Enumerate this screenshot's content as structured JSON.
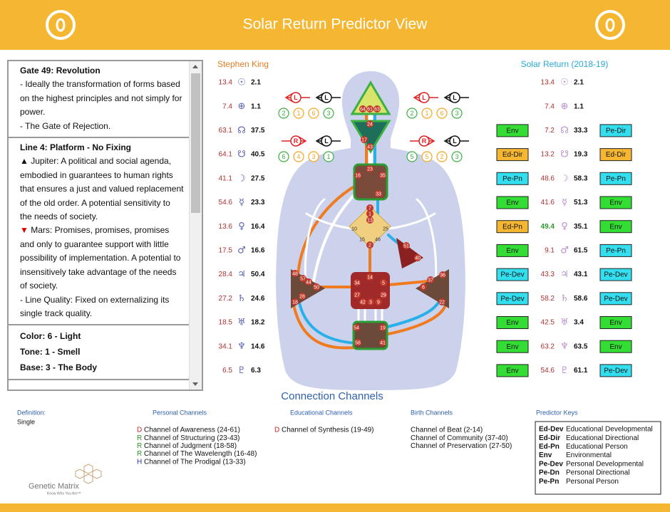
{
  "header": {
    "title": "Solar Return Predictor View"
  },
  "info_panel": {
    "gate_title": "Gate 49: Revolution",
    "gate_lines": [
      "- Ideally the transformation of forms based on the highest principles and not simply for power.",
      "- The Gate of Rejection."
    ],
    "line_title": "Line 4: Platform - No Fixing",
    "jupiter": {
      "marker": "▲",
      "text": "Jupiter: A political and social agenda, embodied in guarantees to human rights that ensures a just and valued replacement of the old order. A potential sensitivity to the needs of society."
    },
    "mars": {
      "marker": "▼",
      "text": "Mars: Promises, promises, promises and only to guarantee support with little possibility of implementation. A potential to insensitively take advantage of the needs of society."
    },
    "line_quality": "- Line Quality: Fixed on externalizing its single track quality.",
    "color": "Color: 6 - Light",
    "tone": "Tone: 1 - Smell",
    "base": "Base: 3 - The Body"
  },
  "persons": {
    "natal": "Stephen King",
    "solar_return": "Solar Return (2018-19)"
  },
  "planets": [
    {
      "symbol": "☉",
      "natal_design": 13.4,
      "natal_personality": 2.1,
      "return_design": 13.4,
      "return_personality": 2.1
    },
    {
      "symbol": "⊕",
      "natal_design": 7.4,
      "natal_personality": 1.1,
      "return_design": 7.4,
      "return_personality": 1.1
    },
    {
      "symbol": "☊",
      "natal_design": 63.1,
      "natal_personality": 37.5,
      "tag_left": "Env",
      "return_design": 7.2,
      "return_personality": 33.3,
      "tag_right": "Pe-Dir"
    },
    {
      "symbol": "☋",
      "natal_design": 64.1,
      "natal_personality": 40.5,
      "tag_left": "Ed-Dir",
      "return_design": 13.2,
      "return_personality": 19.3,
      "tag_right": "Ed-Dir"
    },
    {
      "symbol": "☽",
      "natal_design": 41.1,
      "natal_personality": 27.5,
      "tag_left": "Pe-Pn",
      "return_design": 48.6,
      "return_personality": 58.3,
      "tag_right": "Pe-Pn"
    },
    {
      "symbol": "☿",
      "natal_design": 54.6,
      "natal_personality": 23.3,
      "tag_left": "Env",
      "return_design": 41.6,
      "return_personality": 51.3,
      "tag_right": "Env"
    },
    {
      "symbol": "♀",
      "natal_design": 13.6,
      "natal_personality": 16.4,
      "tag_left": "Ed-Pn",
      "return_design": 49.4,
      "return_personality": 35.1,
      "tag_right": "Env",
      "highlight": true
    },
    {
      "symbol": "♂",
      "natal_design": 17.5,
      "natal_personality": 16.6,
      "tag_left": "Env",
      "return_design": 9.1,
      "return_personality": 61.5,
      "tag_right": "Pe-Pn"
    },
    {
      "symbol": "♃",
      "natal_design": 28.4,
      "natal_personality": 50.4,
      "tag_left": "Pe-Dev",
      "return_design": 43.3,
      "return_personality": 43.1,
      "tag_right": "Pe-Dev"
    },
    {
      "symbol": "♄",
      "natal_design": 27.2,
      "natal_personality": 24.6,
      "tag_left": "Pe-Dev",
      "return_design": 58.2,
      "return_personality": 58.6,
      "tag_right": "Pe-Dev"
    },
    {
      "symbol": "♅",
      "natal_design": 18.5,
      "natal_personality": 18.2,
      "tag_left": "Env",
      "return_design": 42.5,
      "return_personality": 3.4,
      "tag_right": "Env"
    },
    {
      "symbol": "♆",
      "natal_design": 34.1,
      "natal_personality": 14.6,
      "tag_left": "Env",
      "return_design": 63.2,
      "return_personality": 63.5,
      "tag_right": "Env"
    },
    {
      "symbol": "♇",
      "natal_design": 6.5,
      "natal_personality": 6.3,
      "tag_left": "Env",
      "return_design": 54.6,
      "return_personality": 61.1,
      "tag_right": "Pe-Dev"
    }
  ],
  "variables": [
    {
      "arrows": [
        "L",
        "L"
      ],
      "numbers": [
        2,
        1,
        6,
        3
      ]
    },
    {
      "arrows": [
        "L",
        "L"
      ],
      "numbers": [
        2,
        1,
        6,
        3
      ]
    },
    {
      "arrows": [
        "R",
        "L"
      ],
      "numbers": [
        6,
        4,
        3,
        1
      ]
    },
    {
      "arrows": [
        "R",
        "L"
      ],
      "numbers": [
        5,
        5,
        2,
        3
      ]
    }
  ],
  "gates": [
    64,
    61,
    63,
    24,
    17,
    43,
    23,
    16,
    35,
    33,
    7,
    1,
    13,
    10,
    25,
    15,
    46,
    2,
    51,
    40,
    48,
    57,
    44,
    50,
    28,
    18,
    14,
    34,
    27,
    42,
    3,
    9,
    29,
    5,
    37,
    6,
    36,
    22,
    54,
    19,
    58,
    41
  ],
  "channels": {
    "title": "Connection Channels",
    "definition": {
      "label": "Definition:",
      "value": "Single"
    },
    "groups": [
      {
        "title": "Personal Channels",
        "items": [
          {
            "code": "D",
            "name": "Channel of Awareness (24-61)"
          },
          {
            "code": "R",
            "name": "Channel of Structuring (23-43)"
          },
          {
            "code": "R",
            "name": "Channel of Judgment (18-58)"
          },
          {
            "code": "R",
            "name": "Channel of The Wavelength (16-48)"
          },
          {
            "code": "H",
            "name": "Channel of The Prodigal (13-33)"
          }
        ]
      },
      {
        "title": "Educational Channels",
        "items": [
          {
            "code": "D",
            "name": "Channel of Synthesis (19-49)"
          }
        ]
      },
      {
        "title": "Birth Channels",
        "items": [
          {
            "name": "Channel of Beat (2-14)"
          },
          {
            "name": "Channel of Community (37-40)"
          },
          {
            "name": "Channel of Preservation (27-50)"
          }
        ]
      }
    ]
  },
  "predictor_keys": {
    "title": "Predictor Keys",
    "items": [
      {
        "key": "Ed-Dev",
        "meaning": "Educational Developmental"
      },
      {
        "key": "Ed-Dir",
        "meaning": "Educational Directional"
      },
      {
        "key": "Ed-Pn",
        "meaning": "Educational Person"
      },
      {
        "key": "Env",
        "meaning": "Environmental"
      },
      {
        "key": "Pe-Dev",
        "meaning": "Personal Developmental"
      },
      {
        "key": "Pe-Dn",
        "meaning": "Personal Directional"
      },
      {
        "key": "Pe-Pn",
        "meaning": "Personal Person"
      }
    ]
  },
  "logo": {
    "name": "Genetic Matrix",
    "tagline": "Know Who You Are™"
  }
}
